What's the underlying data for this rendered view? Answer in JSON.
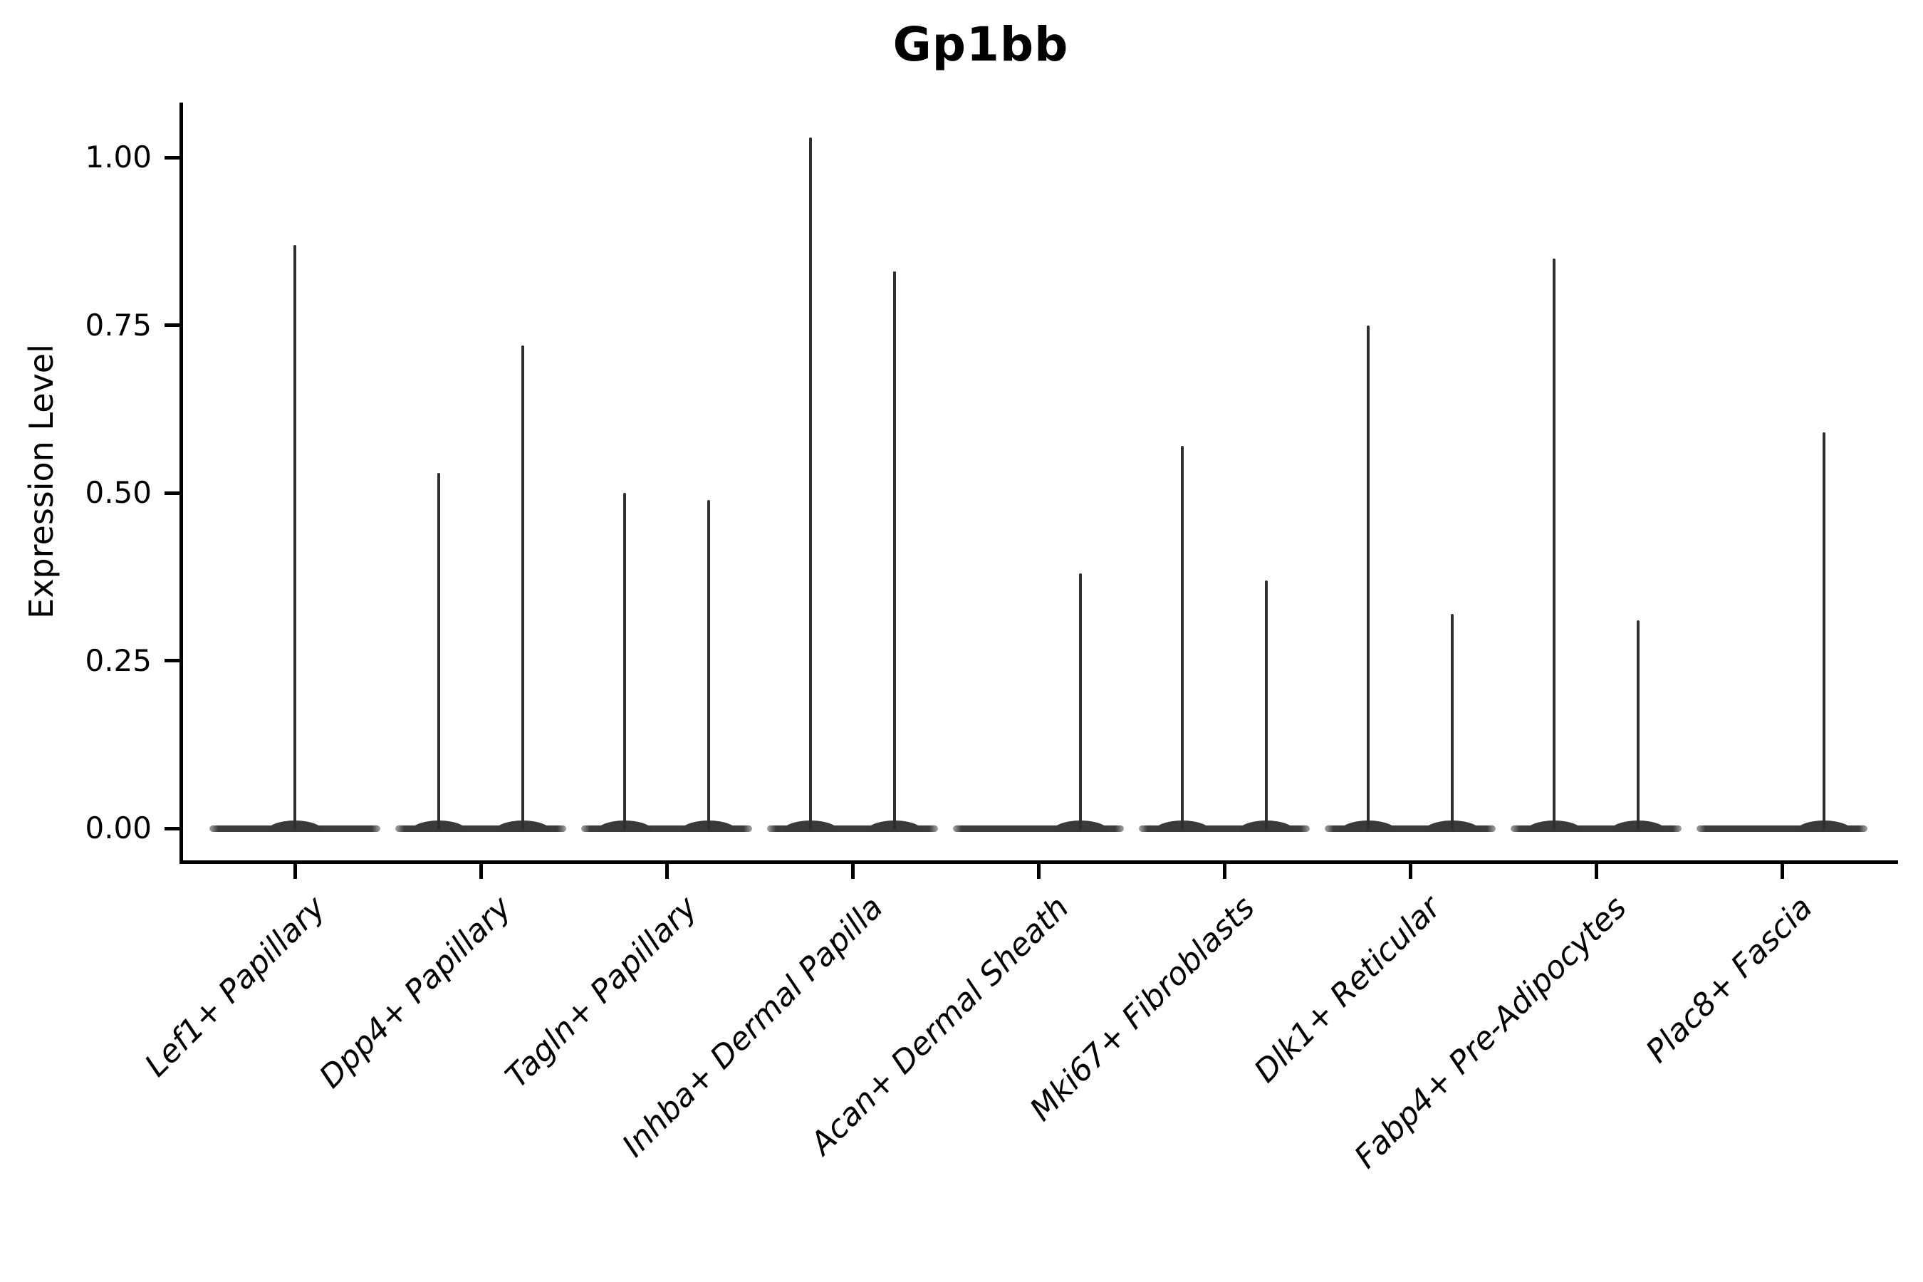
{
  "title": "Gp1bb",
  "axes": {
    "ylabel": "Expression Level",
    "ytick_labels": [
      "1.00",
      "0.75",
      "0.50",
      "0.25",
      "0.00"
    ]
  },
  "chart_data": {
    "type": "violin",
    "title": "Gp1bb",
    "xlabel": "",
    "ylabel": "Expression Level",
    "ylim": [
      -0.05,
      1.1
    ],
    "yticks": [
      0.0,
      0.25,
      0.5,
      0.75,
      1.0
    ],
    "grid": false,
    "legend": "none",
    "style": "violins collapsed to a flat bar at 0 expression with a thin density spike rising to the max expression value; categories 2-9 contain two side-by-side violins, category 1 a single centered violin",
    "categories": [
      "Lef1+ Papillary",
      "Dpp4+ Papillary",
      "Tagln+ Papillary",
      "Inhba+ Dermal Papilla",
      "Acan+ Dermal Sheath",
      "Mki67+ Fibroblasts",
      "Dlk1+ Reticular",
      "Fabp4+ Pre-Adipocytes",
      "Plac8+ Fascia"
    ],
    "series": [
      {
        "category": "Lef1+ Papillary",
        "violins": [
          {
            "position": "center",
            "max_expression": 0.87
          }
        ]
      },
      {
        "category": "Dpp4+ Papillary",
        "violins": [
          {
            "position": "left",
            "max_expression": 0.53
          },
          {
            "position": "right",
            "max_expression": 0.72
          }
        ]
      },
      {
        "category": "Tagln+ Papillary",
        "violins": [
          {
            "position": "left",
            "max_expression": 0.5
          },
          {
            "position": "right",
            "max_expression": 0.49
          }
        ]
      },
      {
        "category": "Inhba+ Dermal Papilla",
        "violins": [
          {
            "position": "left",
            "max_expression": 1.03
          },
          {
            "position": "right",
            "max_expression": 0.83
          }
        ]
      },
      {
        "category": "Acan+ Dermal Sheath",
        "violins": [
          {
            "position": "left",
            "max_expression": 0.0
          },
          {
            "position": "right",
            "max_expression": 0.38
          }
        ]
      },
      {
        "category": "Mki67+ Fibroblasts",
        "violins": [
          {
            "position": "left",
            "max_expression": 0.57
          },
          {
            "position": "right",
            "max_expression": 0.37
          }
        ]
      },
      {
        "category": "Dlk1+ Reticular",
        "violins": [
          {
            "position": "left",
            "max_expression": 0.75
          },
          {
            "position": "right",
            "max_expression": 0.32
          }
        ]
      },
      {
        "category": "Fabp4+ Pre-Adipocytes",
        "violins": [
          {
            "position": "left",
            "max_expression": 0.85
          },
          {
            "position": "right",
            "max_expression": 0.31
          }
        ]
      },
      {
        "category": "Plac8+ Fascia",
        "violins": [
          {
            "position": "left",
            "max_expression": 0.0
          },
          {
            "position": "right",
            "max_expression": 0.59
          }
        ]
      }
    ]
  },
  "colors": {
    "violin_fill": "#3c3c3c",
    "spike": "#2f2f2f",
    "axis": "#000000",
    "text": "#000000",
    "background": "#ffffff"
  }
}
